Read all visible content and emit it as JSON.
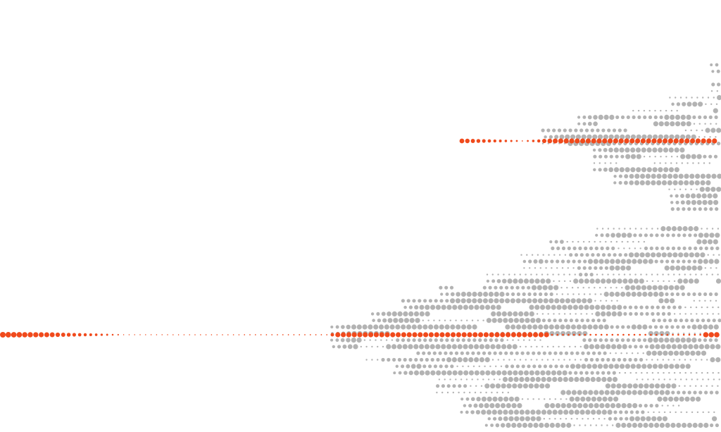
{
  "background_color": "#ffffff",
  "dot_colors": {
    "gray": "#b3b3b3",
    "accent": "#f04a1c"
  }
}
